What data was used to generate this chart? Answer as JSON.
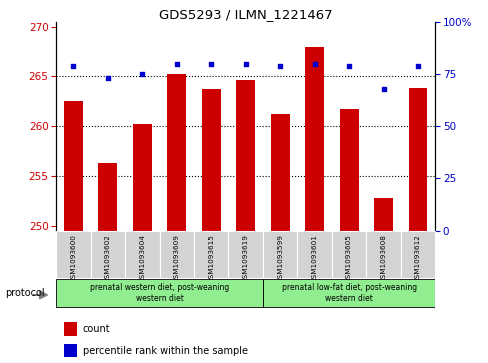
{
  "title": "GDS5293 / ILMN_1221467",
  "samples": [
    "GSM1093600",
    "GSM1093602",
    "GSM1093604",
    "GSM1093609",
    "GSM1093615",
    "GSM1093619",
    "GSM1093599",
    "GSM1093601",
    "GSM1093605",
    "GSM1093608",
    "GSM1093612"
  ],
  "counts": [
    262.5,
    256.3,
    260.2,
    265.2,
    263.7,
    264.6,
    261.2,
    268.0,
    261.7,
    252.8,
    263.8
  ],
  "percentiles": [
    79,
    73,
    75,
    80,
    80,
    80,
    79,
    80,
    79,
    68,
    79
  ],
  "ylim_left": [
    249.5,
    270.5
  ],
  "ylim_right": [
    0,
    100
  ],
  "yticks_left": [
    250,
    255,
    260,
    265,
    270
  ],
  "yticks_right": [
    0,
    25,
    50,
    75,
    100
  ],
  "bar_color": "#cc0000",
  "dot_color": "#0000cc",
  "bar_bottom": 249.5,
  "group1_label": "prenatal western diet, post-weaning\nwestern diet",
  "group2_label": "prenatal low-fat diet, post-weaning\nwestern diet",
  "group1_count": 6,
  "group2_count": 5,
  "group1_color": "#90ee90",
  "group2_color": "#90ee90",
  "protocol_label": "protocol",
  "legend_count_label": "count",
  "legend_percentile_label": "percentile rank within the sample",
  "background_color": "#ffffff",
  "plot_bg": "#ffffff",
  "tick_bg": "#d3d3d3"
}
